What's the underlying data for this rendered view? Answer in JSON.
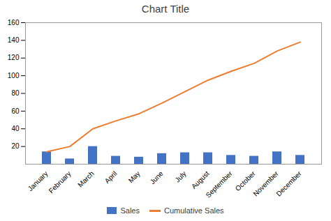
{
  "chart_data": {
    "type": "bar",
    "title": "Chart Title",
    "categories": [
      "January",
      "February",
      "March",
      "April",
      "May",
      "June",
      "July",
      "August",
      "September",
      "October",
      "November",
      "December"
    ],
    "series": [
      {
        "name": "Sales",
        "type": "bar",
        "color": "#4472C4",
        "values": [
          14,
          6,
          20,
          9,
          8,
          12,
          13,
          13,
          10,
          9,
          14,
          10
        ]
      },
      {
        "name": "Cumulative Sales",
        "type": "line",
        "color": "#ED7D31",
        "values": [
          14,
          20,
          40,
          49,
          57,
          69,
          82,
          95,
          105,
          114,
          128,
          138
        ]
      }
    ],
    "ylim": [
      0,
      160
    ],
    "yticks": [
      20,
      40,
      60,
      80,
      100,
      120,
      140,
      160
    ],
    "grid": false,
    "legend": "bottom"
  }
}
